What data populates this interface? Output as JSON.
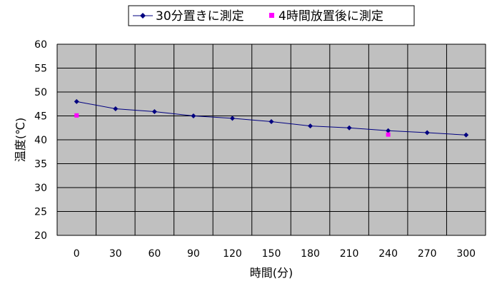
{
  "chart_data": {
    "type": "line",
    "xlabel": "時間(分)",
    "ylabel": "温度(℃)",
    "x": [
      0,
      30,
      60,
      90,
      120,
      150,
      180,
      210,
      240,
      270,
      300
    ],
    "xlim": [
      0,
      300
    ],
    "ylim": [
      20,
      60
    ],
    "yticks": [
      20,
      25,
      30,
      35,
      40,
      45,
      50,
      55,
      60
    ],
    "grid": true,
    "legend_position": "top",
    "series": [
      {
        "name": "30分置きに測定",
        "color": "#000080",
        "marker": "diamond",
        "line": true,
        "points": [
          [
            0,
            48
          ],
          [
            30,
            46.5
          ],
          [
            60,
            45.9
          ],
          [
            90,
            45
          ],
          [
            120,
            44.5
          ],
          [
            150,
            43.8
          ],
          [
            180,
            42.9
          ],
          [
            210,
            42.5
          ],
          [
            240,
            41.9
          ],
          [
            270,
            41.5
          ],
          [
            300,
            41
          ]
        ]
      },
      {
        "name": "4時間放置後に測定",
        "color": "#FF00FF",
        "marker": "square",
        "line": false,
        "points": [
          [
            0,
            45.1
          ],
          [
            240,
            41.1
          ]
        ]
      }
    ]
  }
}
